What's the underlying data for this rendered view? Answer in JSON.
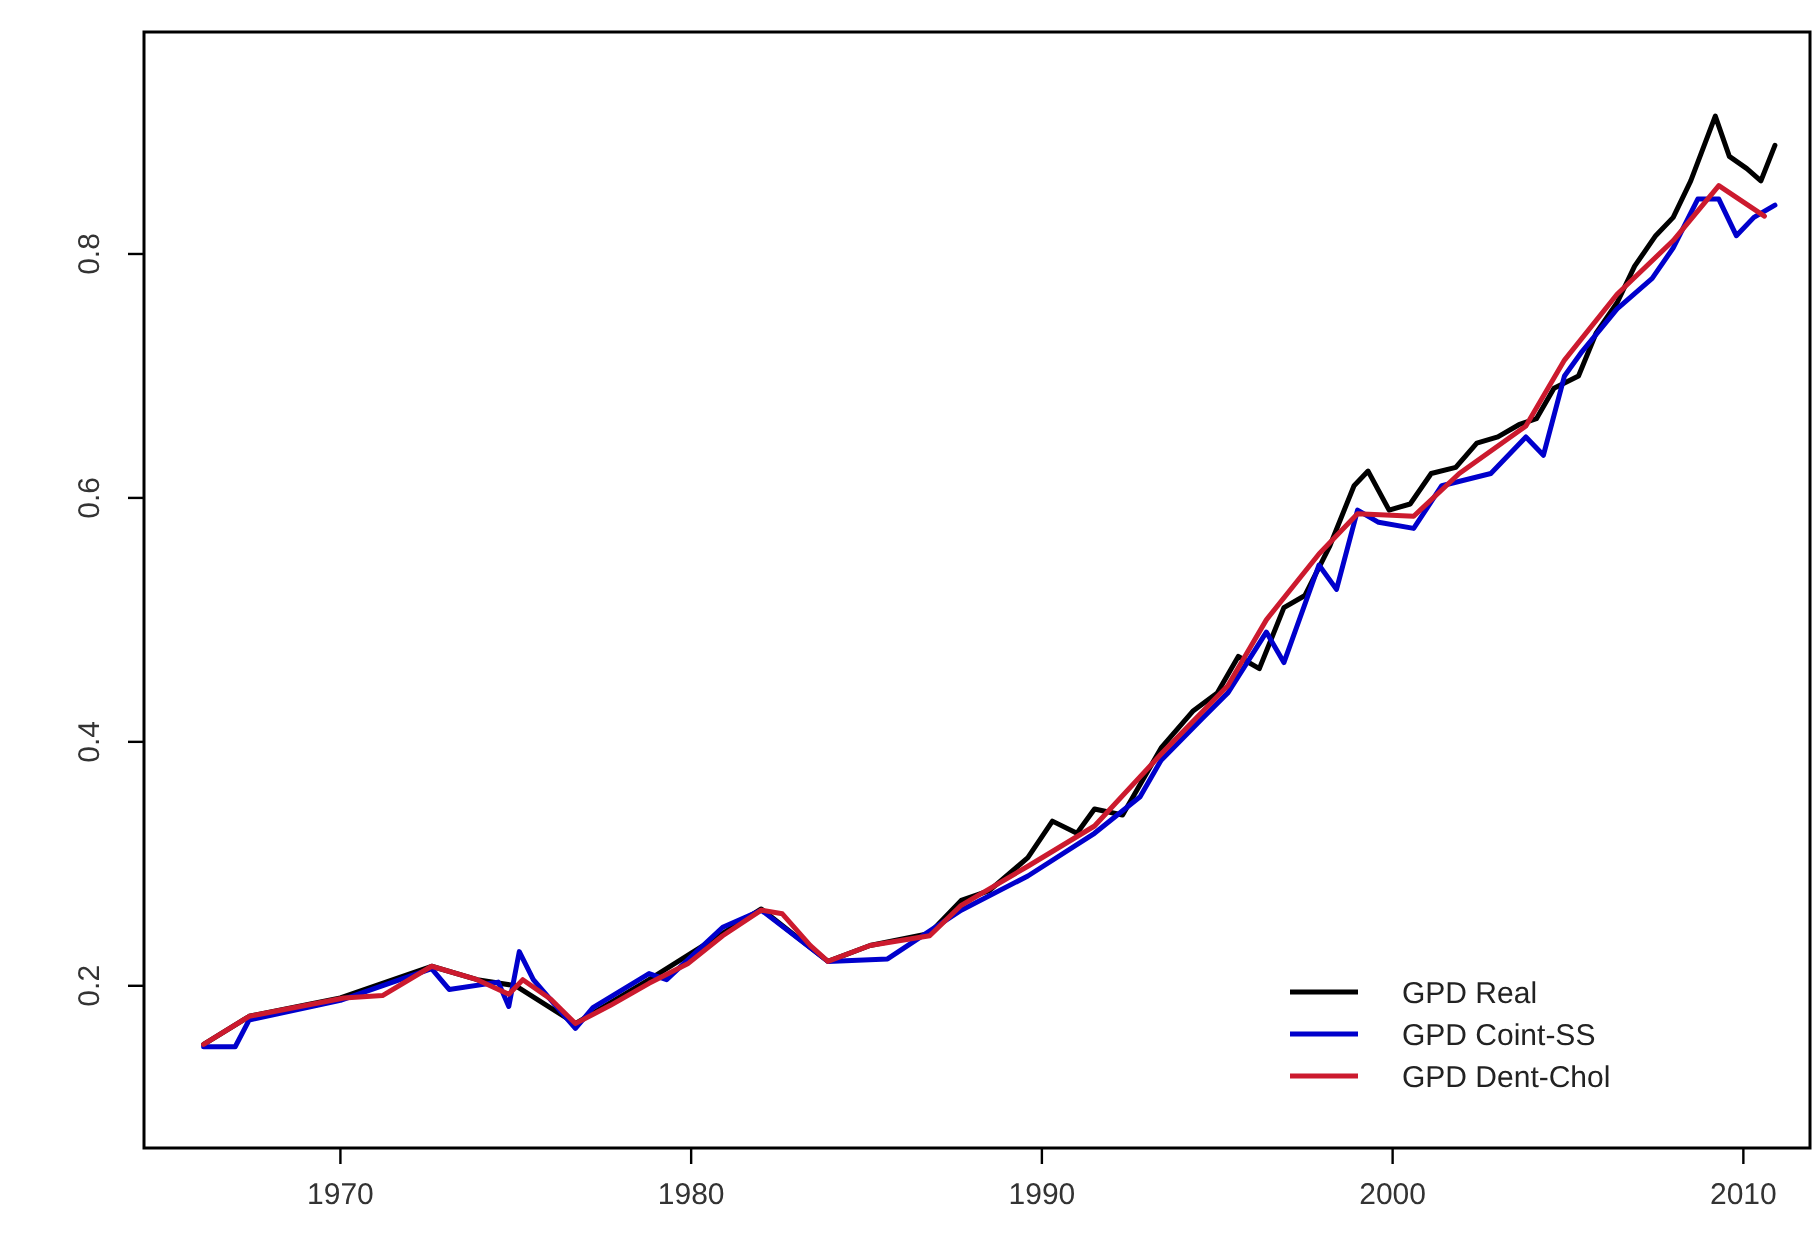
{
  "chart_data": {
    "type": "line",
    "xlim": [
      1964.4,
      2011.9
    ],
    "ylim": [
      0.067,
      0.982
    ],
    "xticks": [
      1970,
      1980,
      1990,
      2000,
      2010
    ],
    "yticks": [
      0.2,
      0.4,
      0.6,
      0.8
    ],
    "grid": false,
    "legend": "bottom right",
    "line_style": "solid",
    "marker": "none",
    "series": [
      {
        "name": "GPD Real",
        "color": "#000000",
        "x": [
          1966.1,
          1967.4,
          1970,
          1972.6,
          1973.9,
          1975,
          1976.7,
          1978.8,
          1980.9,
          1982.0,
          1983.9,
          1985.1,
          1986.8,
          1987.7,
          1988.5,
          1989.6,
          1990.3,
          1991,
          1991.5,
          1992.3,
          1993.4,
          1994.3,
          1995.0,
          1995.6,
          1996.2,
          1996.9,
          1997.5,
          1998.2,
          1998.9,
          1999.3,
          1999.9,
          2000.5,
          2001.1,
          2001.8,
          2002.4,
          2003.0,
          2003.6,
          2004.1,
          2004.6,
          2005.3,
          2005.8,
          2006.4,
          2006.9,
          2007.5,
          2008.0,
          2008.5,
          2009.2,
          2009.6,
          2010.1,
          2010.5,
          2010.9
        ],
        "values": [
          0.152,
          0.175,
          0.19,
          0.216,
          0.205,
          0.2,
          0.169,
          0.205,
          0.243,
          0.263,
          0.22,
          0.233,
          0.243,
          0.27,
          0.278,
          0.305,
          0.335,
          0.325,
          0.345,
          0.34,
          0.395,
          0.425,
          0.44,
          0.47,
          0.46,
          0.51,
          0.52,
          0.56,
          0.61,
          0.622,
          0.59,
          0.595,
          0.62,
          0.625,
          0.645,
          0.65,
          0.66,
          0.665,
          0.69,
          0.7,
          0.735,
          0.76,
          0.79,
          0.815,
          0.83,
          0.86,
          0.913,
          0.88,
          0.87,
          0.86,
          0.889
        ]
      },
      {
        "name": "GPD Coint-SS",
        "color": "#0000cc",
        "x": [
          1966.1,
          1967,
          1967.4,
          1970,
          1972.6,
          1973.1,
          1974.5,
          1974.8,
          1975.1,
          1975.5,
          1976.7,
          1977.2,
          1978.8,
          1979.3,
          1980.9,
          1982,
          1983.9,
          1985.6,
          1987.7,
          1989.6,
          1991.5,
          1992.8,
          1993.4,
          1994.6,
          1995.3,
          1996.4,
          1996.9,
          1997.9,
          1998.4,
          1999.0,
          1999.6,
          2000.6,
          2001.4,
          2002.8,
          2003.8,
          2004.3,
          2004.9,
          2005.4,
          2006.4,
          2007.4,
          2008.0,
          2008.7,
          2009.3,
          2009.8,
          2010.3,
          2010.9
        ],
        "values": [
          0.15,
          0.15,
          0.172,
          0.188,
          0.214,
          0.197,
          0.203,
          0.183,
          0.228,
          0.205,
          0.165,
          0.182,
          0.21,
          0.205,
          0.248,
          0.262,
          0.22,
          0.222,
          0.262,
          0.29,
          0.325,
          0.355,
          0.385,
          0.42,
          0.44,
          0.49,
          0.465,
          0.545,
          0.525,
          0.59,
          0.58,
          0.575,
          0.61,
          0.62,
          0.65,
          0.635,
          0.7,
          0.72,
          0.755,
          0.78,
          0.805,
          0.845,
          0.845,
          0.815,
          0.83,
          0.84
        ]
      },
      {
        "name": "GPD Dent-Chol",
        "color": "#cc1a2e",
        "x": [
          1966.1,
          1967.4,
          1970.1,
          1971.2,
          1972.6,
          1973.9,
          1974.8,
          1975.2,
          1976.0,
          1976.7,
          1977.7,
          1978.8,
          1979.9,
          1980.9,
          1982.0,
          1982.6,
          1983.4,
          1983.9,
          1985.1,
          1986.8,
          1987.7,
          1989.6,
          1991.5,
          1993.4,
          1995.3,
          1996.4,
          1997.9,
          1999.0,
          2000.6,
          2001.9,
          2003.8,
          2004.9,
          2006.4,
          2008.0,
          2009.3,
          2010.6
        ],
        "values": [
          0.152,
          0.175,
          0.19,
          0.192,
          0.216,
          0.205,
          0.193,
          0.205,
          0.189,
          0.169,
          0.184,
          0.202,
          0.218,
          0.241,
          0.262,
          0.259,
          0.233,
          0.22,
          0.233,
          0.241,
          0.266,
          0.298,
          0.331,
          0.39,
          0.446,
          0.5,
          0.554,
          0.587,
          0.585,
          0.62,
          0.659,
          0.713,
          0.767,
          0.811,
          0.856,
          0.831
        ]
      }
    ]
  }
}
